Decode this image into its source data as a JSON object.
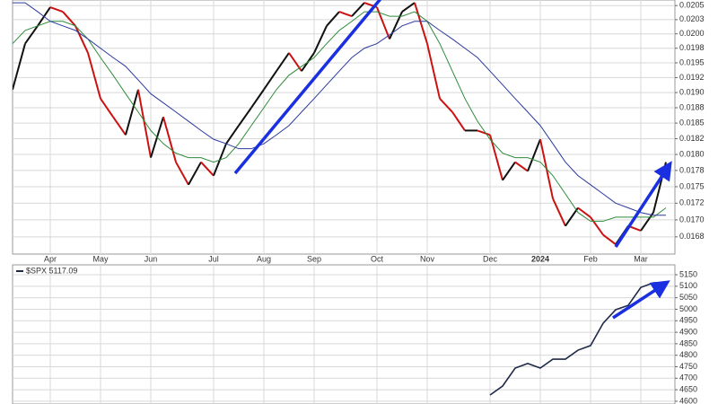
{
  "chart_data": [
    {
      "type": "line",
      "categories": [
        null,
        null,
        null,
        "Apr",
        null,
        null,
        null,
        "May",
        null,
        null,
        null,
        "Jun",
        null,
        null,
        null,
        null,
        "Jul",
        null,
        null,
        null,
        "Aug",
        null,
        null,
        null,
        "Sep",
        null,
        null,
        null,
        null,
        "Oct",
        null,
        null,
        null,
        "Nov",
        null,
        null,
        null,
        null,
        "Dec",
        null,
        null,
        null,
        "2024",
        null,
        null,
        null,
        "Feb",
        null,
        null,
        null,
        "Mar",
        null,
        null
      ],
      "series": [
        {
          "color": "#cc1111",
          "up_color": "#111111",
          "values": [
            0.01905,
            0.01983,
            0.02014,
            0.02047,
            0.02039,
            0.02014,
            0.01967,
            0.0189,
            0.0186,
            0.01831,
            0.01905,
            0.01795,
            0.0186,
            0.01788,
            0.01753,
            0.01788,
            0.01767,
            0.01817,
            0.01846,
            0.01875,
            0.01905,
            0.01936,
            0.01967,
            0.01936,
            0.01967,
            0.02014,
            0.02039,
            0.02031,
            0.02055,
            0.02047,
            0.01991,
            0.02039,
            0.02055,
            0.01983,
            0.0189,
            0.01868,
            0.01838,
            0.01838,
            0.01831,
            0.0176,
            0.01788,
            0.01774,
            0.01824,
            0.01732,
            0.01691,
            0.01718,
            0.01704,
            0.01678,
            0.01664,
            0.01691,
            0.01684,
            0.01711,
            0.01788
          ]
        },
        {
          "color": "#2e8b3a",
          "values": [
            0.01983,
            0.02006,
            0.02014,
            0.02022,
            0.02022,
            0.02014,
            0.01991,
            0.01959,
            0.01929,
            0.01898,
            0.01868,
            0.01838,
            0.01817,
            0.01802,
            0.01795,
            0.01795,
            0.01788,
            0.01795,
            0.01817,
            0.01846,
            0.01875,
            0.01905,
            0.01929,
            0.01944,
            0.01959,
            0.01983,
            0.02006,
            0.02022,
            0.02039,
            0.02039,
            0.02031,
            0.02031,
            0.02039,
            0.02022,
            0.01983,
            0.01936,
            0.0189,
            0.01853,
            0.01824,
            0.01802,
            0.01795,
            0.01795,
            0.01788,
            0.01767,
            0.01739,
            0.01711,
            0.01698,
            0.01698,
            0.01704,
            0.01704,
            0.01704,
            0.01704,
            0.01718
          ]
        },
        {
          "color": "#2b3a9c",
          "values": [
            0.02055,
            0.02055,
            0.02039,
            0.02022,
            0.02014,
            0.02006,
            0.01991,
            0.01975,
            0.01959,
            0.01944,
            0.01921,
            0.01898,
            0.01883,
            0.01868,
            0.01853,
            0.01838,
            0.01824,
            0.01817,
            0.01809,
            0.01809,
            0.01817,
            0.01831,
            0.01846,
            0.01868,
            0.0189,
            0.01913,
            0.01936,
            0.01959,
            0.01975,
            0.01983,
            0.01998,
            0.02014,
            0.02022,
            0.02022,
            0.02006,
            0.01991,
            0.01975,
            0.01959,
            0.01936,
            0.01913,
            0.0189,
            0.01868,
            0.01846,
            0.01817,
            0.01788,
            0.01767,
            0.01753,
            0.01739,
            0.01725,
            0.01718,
            0.01711,
            0.01707,
            0.01707
          ]
        }
      ],
      "ylim": [
        0.0165,
        0.0206
      ],
      "log_scale": true,
      "grid": true,
      "yticks": [
        {
          "value": 0.01675,
          "label": "0.0168"
        },
        {
          "value": 0.017,
          "label": "0.0170"
        },
        {
          "value": 0.01725,
          "label": "0.0172"
        },
        0.0175,
        {
          "value": 0.01775,
          "label": "0.0178"
        },
        {
          "value": 0.018,
          "label": "0.0180"
        },
        {
          "value": 0.01825,
          "label": "0.0182"
        },
        0.0185,
        {
          "value": 0.01875,
          "label": "0.0188"
        },
        {
          "value": 0.019,
          "label": "0.0190"
        },
        {
          "value": 0.01925,
          "label": "0.0192"
        },
        0.0195,
        {
          "value": 0.01975,
          "label": "0.0198"
        },
        {
          "value": 0.02,
          "label": "0.0200"
        },
        {
          "value": 0.02025,
          "label": "0.0203"
        },
        0.0205
      ]
    },
    {
      "type": "line",
      "series": [
        {
          "name": "$SPX 5117.09",
          "color": "#1f2a48",
          "values": [
            null,
            null,
            null,
            null,
            null,
            null,
            null,
            null,
            null,
            null,
            null,
            null,
            null,
            null,
            null,
            null,
            null,
            null,
            null,
            null,
            null,
            null,
            null,
            null,
            null,
            null,
            null,
            null,
            null,
            null,
            null,
            null,
            null,
            null,
            null,
            null,
            null,
            null,
            4627,
            4666,
            4744,
            4764,
            4744,
            4783,
            4783,
            4822,
            4842,
            4939,
            4998,
            5017,
            5095,
            5115,
            5117.09
          ]
        }
      ],
      "ylim": [
        4588,
        5193
      ],
      "log_scale": false,
      "grid": true,
      "yticks": [
        4600,
        4650,
        4700,
        4750,
        4800,
        4850,
        4900,
        4950,
        5000,
        5050,
        5100,
        5150
      ]
    }
  ]
}
